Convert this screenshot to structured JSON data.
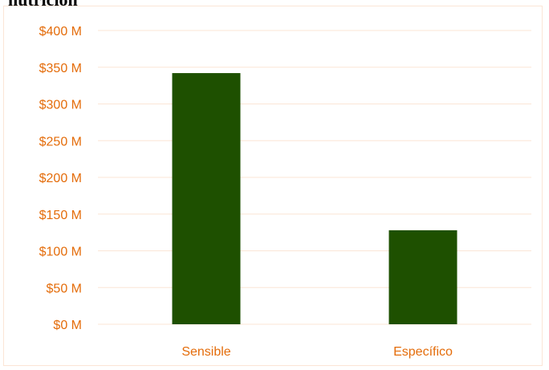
{
  "page": {
    "partial_heading": "nutrición"
  },
  "colors": {
    "bar": "#1e5000",
    "gridline": "#fbe5d6",
    "label": "#e46c0a",
    "frame": "#fbe5d6"
  },
  "chart_data": {
    "type": "bar",
    "categories": [
      "Sensible",
      "Específico"
    ],
    "values": [
      342,
      128
    ],
    "ylim": [
      0,
      400
    ],
    "yticks": [
      0,
      50,
      100,
      150,
      200,
      250,
      300,
      350,
      400
    ],
    "ytick_labels": [
      "$0 M",
      "$50 M",
      "$100 M",
      "$150 M",
      "$200 M",
      "$250 M",
      "$300 M",
      "$350 M",
      "$400 M"
    ],
    "grid": true,
    "legend": "none"
  }
}
